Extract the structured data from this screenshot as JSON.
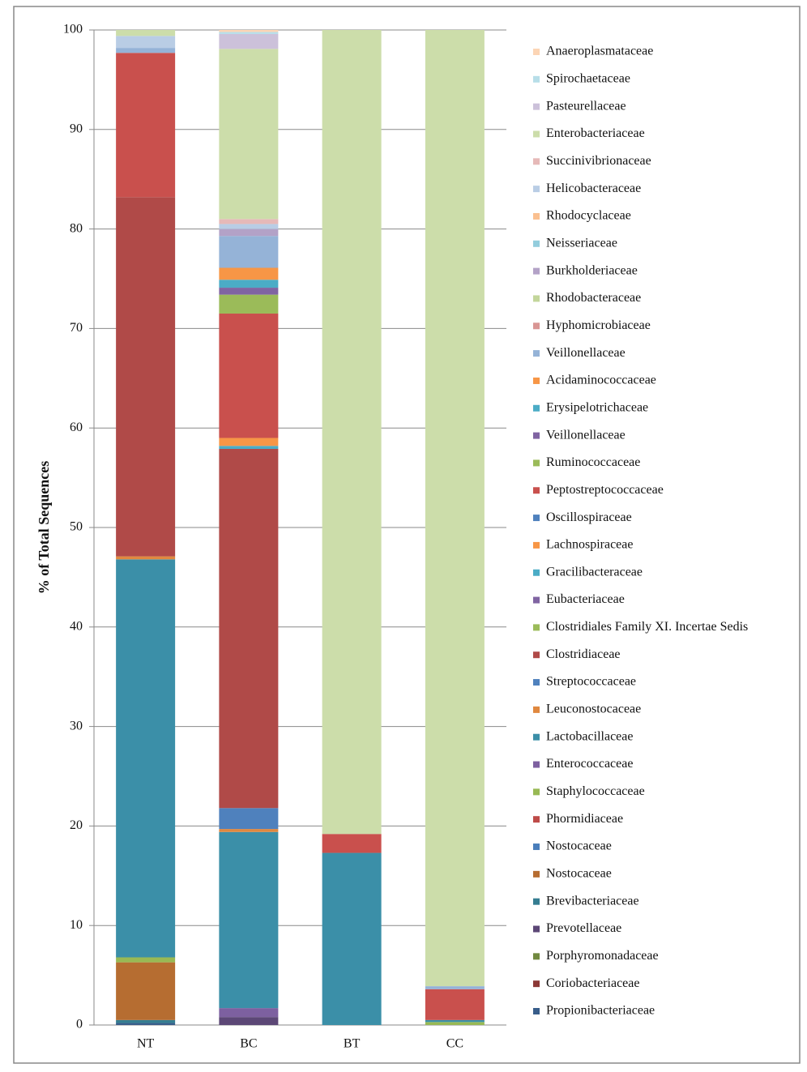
{
  "chart_data": {
    "type": "stacked_bar",
    "y_label": "% of Total Sequences",
    "categories": [
      "NT",
      "BC",
      "BT",
      "CC"
    ],
    "ylim": [
      0,
      100
    ],
    "yticks": [
      0,
      10,
      20,
      30,
      40,
      50,
      60,
      70,
      80,
      90,
      100
    ],
    "grid": true,
    "legend": "right",
    "series": [
      {
        "name": "Propionibacteriaceae",
        "color": "#385D8A",
        "values": [
          0.2,
          0,
          0,
          0
        ]
      },
      {
        "name": "Coriobacteriaceae",
        "color": "#8C3836",
        "values": [
          0,
          0,
          0,
          0
        ]
      },
      {
        "name": "Porphyromonadaceae",
        "color": "#71893F",
        "values": [
          0,
          0,
          0,
          0
        ]
      },
      {
        "name": "Prevotellaceae",
        "color": "#5C4776",
        "values": [
          0,
          0.8,
          0,
          0
        ]
      },
      {
        "name": "Brevibacteriaceae",
        "color": "#357D91",
        "values": [
          0.3,
          0,
          0,
          0
        ]
      },
      {
        "name": "Nostocaceae",
        "color": "#B66D31",
        "values": [
          5.8,
          0,
          0,
          0
        ]
      },
      {
        "name": "Nostocaceae",
        "color": "#4A7EBB",
        "values": [
          0,
          0,
          0,
          0
        ]
      },
      {
        "name": "Phormidiaceae",
        "color": "#BE4B48",
        "values": [
          0,
          0,
          0,
          0
        ]
      },
      {
        "name": "Staphylococcaceae",
        "color": "#98B954",
        "values": [
          0.5,
          0,
          0,
          0.3
        ]
      },
      {
        "name": "Enterococcaceae",
        "color": "#7D60A0",
        "values": [
          0,
          0.9,
          0,
          0
        ]
      },
      {
        "name": "Lactobacillaceae",
        "color": "#3B8FA8",
        "values": [
          40,
          17.7,
          17.3,
          0.2
        ]
      },
      {
        "name": "Leuconostocaceae",
        "color": "#E0883F",
        "values": [
          0.3,
          0.3,
          0,
          0
        ]
      },
      {
        "name": "Streptococcaceae",
        "color": "#4F81BD",
        "values": [
          0,
          2.1,
          0,
          0
        ]
      },
      {
        "name": "Clostridiaceae",
        "color": "#B04A48",
        "values": [
          36.1,
          36.1,
          0,
          0
        ]
      },
      {
        "name": "Clostridiales Family XI. Incertae Sedis",
        "color": "#9BBB59",
        "values": [
          0,
          0,
          0,
          0
        ]
      },
      {
        "name": "Eubacteriaceae",
        "color": "#8064A2",
        "values": [
          0,
          0,
          0,
          0
        ]
      },
      {
        "name": "Gracilibacteraceae",
        "color": "#4BACC6",
        "values": [
          0,
          0.3,
          0,
          0
        ]
      },
      {
        "name": "Lachnospiraceae",
        "color": "#F79646",
        "values": [
          0,
          0.8,
          0,
          0
        ]
      },
      {
        "name": "Oscillospiraceae",
        "color": "#4F81BD",
        "values": [
          0,
          0,
          0,
          0
        ]
      },
      {
        "name": "Peptostreptococcaceae",
        "color": "#C9504D",
        "values": [
          14.5,
          12.5,
          1.9,
          3.1
        ]
      },
      {
        "name": "Ruminococcaceae",
        "color": "#9BBB59",
        "values": [
          0,
          1.9,
          0,
          0
        ]
      },
      {
        "name": "Veillonellaceae",
        "color": "#8064A2",
        "values": [
          0,
          0.7,
          0,
          0
        ]
      },
      {
        "name": "Erysipelotrichaceae",
        "color": "#4BACC6",
        "values": [
          0,
          0.8,
          0,
          0
        ]
      },
      {
        "name": "Acidaminococcaceae",
        "color": "#F79646",
        "values": [
          0,
          1.2,
          0,
          0
        ]
      },
      {
        "name": "Veillonellaceae",
        "color": "#95B3D7",
        "values": [
          0.5,
          3.2,
          0,
          0.3
        ]
      },
      {
        "name": "Hyphomicrobiaceae",
        "color": "#D99694",
        "values": [
          0,
          0,
          0,
          0
        ]
      },
      {
        "name": "Rhodobacteraceae",
        "color": "#C3D69B",
        "values": [
          0,
          0,
          0,
          0
        ]
      },
      {
        "name": "Burkholderiaceae",
        "color": "#B3A2C7",
        "values": [
          0,
          0.7,
          0,
          0
        ]
      },
      {
        "name": "Neisseriaceae",
        "color": "#93CDDD",
        "values": [
          0,
          0,
          0,
          0
        ]
      },
      {
        "name": "Rhodocyclaceae",
        "color": "#FAC090",
        "values": [
          0,
          0,
          0,
          0
        ]
      },
      {
        "name": "Helicobacteraceae",
        "color": "#B9CDE5",
        "values": [
          1.2,
          0.5,
          0,
          0
        ]
      },
      {
        "name": "Succinivibrionaceae",
        "color": "#E6B9B8",
        "values": [
          0,
          0.5,
          0,
          0
        ]
      },
      {
        "name": "Enterobacteriaceae",
        "color": "#CCDDAA",
        "values": [
          0.6,
          17.1,
          80.8,
          96.1
        ]
      },
      {
        "name": "Pasteurellaceae",
        "color": "#CCC1DA",
        "values": [
          0,
          1.5,
          0,
          0
        ]
      },
      {
        "name": "Spirochaetaceae",
        "color": "#B7DEE8",
        "values": [
          0,
          0.2,
          0,
          0
        ]
      },
      {
        "name": "Anaeroplasmataceae",
        "color": "#FCD5B5",
        "values": [
          0,
          0.2,
          0,
          0
        ]
      }
    ]
  }
}
